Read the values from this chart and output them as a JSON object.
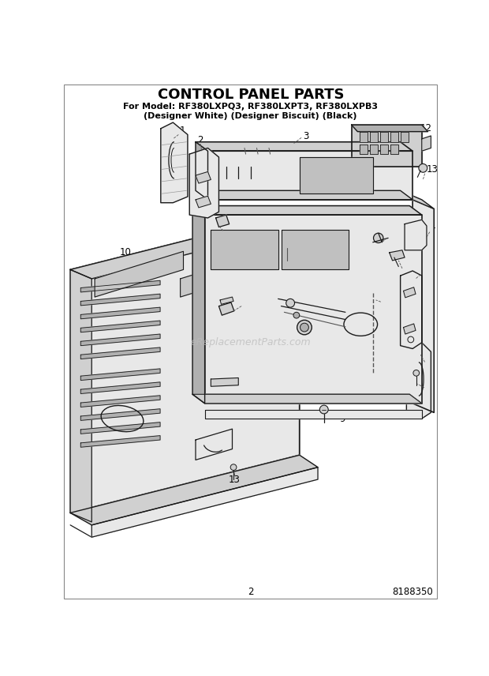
{
  "title": "CONTROL PANEL PARTS",
  "subtitle_line1": "For Model: RF380LXPQ3, RF380LXPT3, RF380LXPB3",
  "subtitle_line2": "(Designer White) (Designer Biscuit) (Black)",
  "page_number": "2",
  "part_number": "8188350",
  "watermark": "eReplacementParts.com",
  "bg": "#ffffff",
  "lc": "#1a1a1a",
  "gray_light": "#e8e8e8",
  "gray_mid": "#d0d0d0",
  "gray_dark": "#b0b0b0",
  "title_fs": 13,
  "sub_fs": 8,
  "lbl_fs": 8.5,
  "foot_fs": 8.5
}
